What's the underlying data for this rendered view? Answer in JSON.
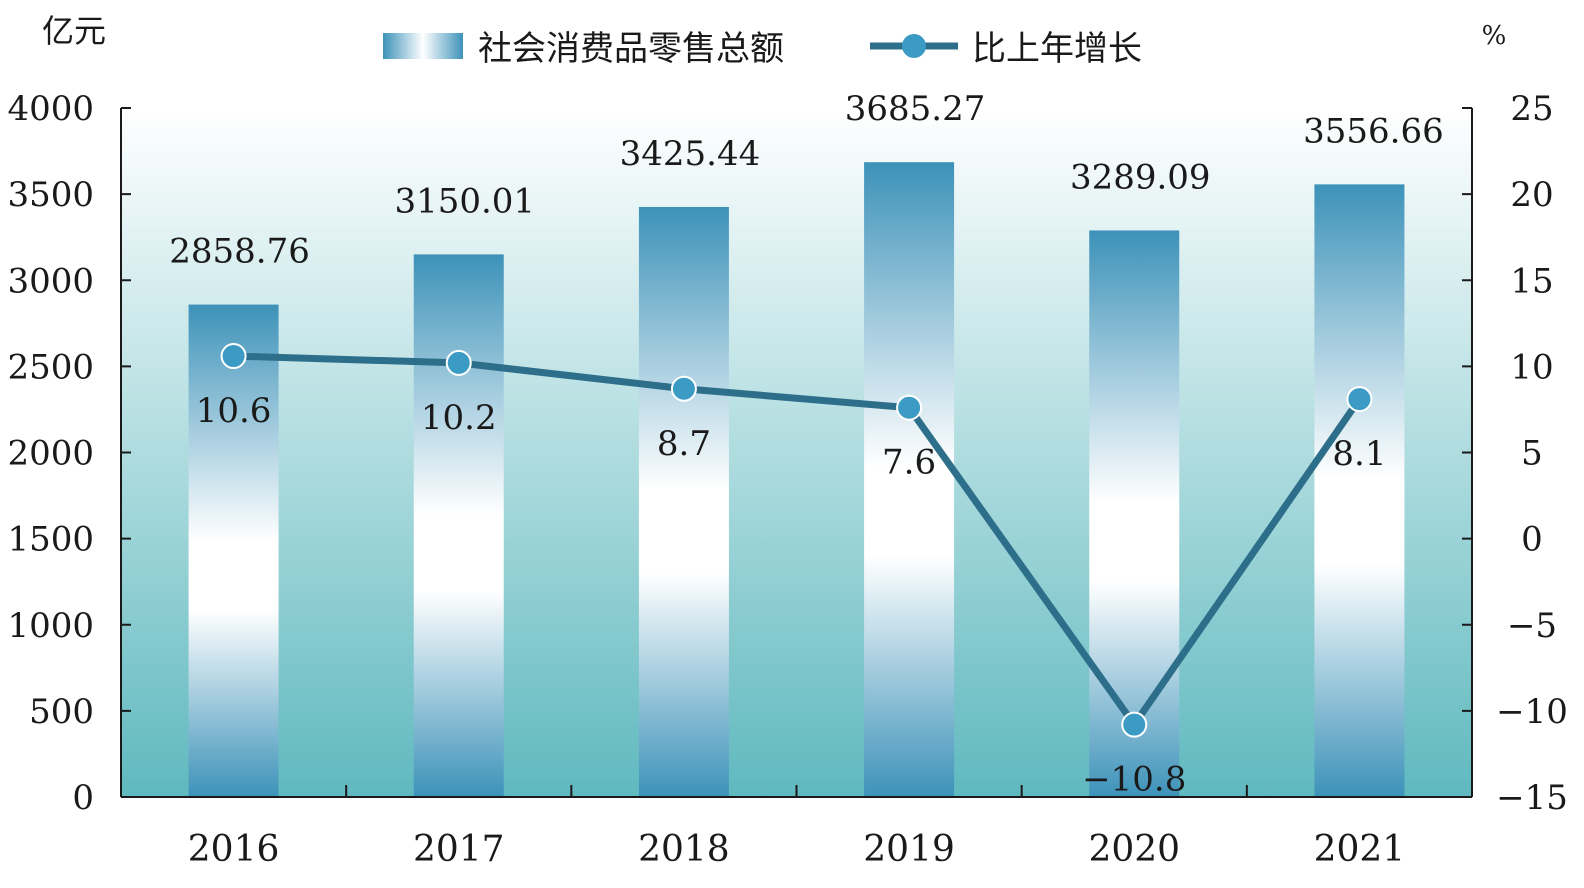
{
  "colors": {
    "bar_dark": "#3d92b9",
    "bar_light": "#ffffff",
    "line": "#2d6e8a",
    "marker": "#3c9bc4",
    "plot_bg_top": "#ffffff",
    "plot_bg_bottom": "#5fb9bf",
    "axis": "#1a1a1a"
  },
  "chart_data": {
    "type": "bar",
    "title": "",
    "categories": [
      "2016",
      "2017",
      "2018",
      "2019",
      "2020",
      "2021"
    ],
    "series": [
      {
        "name": "社会消费品零售总额",
        "type": "bar",
        "axis": "left",
        "values": [
          2858.76,
          3150.01,
          3425.44,
          3685.27,
          3289.09,
          3556.66
        ],
        "labels": [
          "2858.76",
          "3150.01",
          "3425.44",
          "3685.27",
          "3289.09",
          "3556.66"
        ]
      },
      {
        "name": "比上年增长",
        "type": "line",
        "axis": "right",
        "values": [
          10.6,
          10.2,
          8.7,
          7.6,
          -10.8,
          8.1
        ],
        "labels": [
          "10.6",
          "10.2",
          "8.7",
          "7.6",
          "−10.8",
          "8.1"
        ]
      }
    ],
    "left_axis": {
      "unit": "亿元",
      "ylim": [
        0,
        4000
      ],
      "ticks": [
        0,
        500,
        1000,
        1500,
        2000,
        2500,
        3000,
        3500,
        4000
      ],
      "tick_labels": [
        "0",
        "500",
        "1000",
        "1500",
        "2000",
        "2500",
        "3000",
        "3500",
        "4000"
      ]
    },
    "right_axis": {
      "unit": "%",
      "ylim": [
        -15,
        25
      ],
      "ticks": [
        -15,
        -10,
        -5,
        0,
        5,
        10,
        15,
        20,
        25
      ],
      "tick_labels": [
        "−15",
        "−10",
        "−5",
        "0",
        "5",
        "10",
        "15",
        "20",
        "25"
      ]
    },
    "legend_placement": "top-center",
    "grid": false
  }
}
